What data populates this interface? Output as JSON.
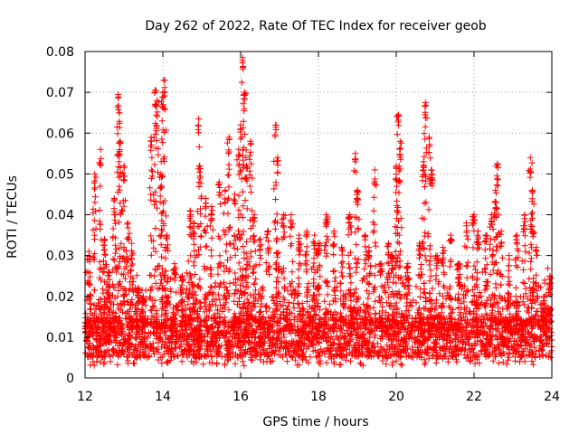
{
  "chart_data": {
    "type": "scatter",
    "title": "Day 262 of 2022, Rate Of TEC Index for receiver geob",
    "xlabel": "GPS time / hours",
    "ylabel": "ROTI / TECUs",
    "xlim": [
      12,
      24
    ],
    "ylim": [
      0,
      0.08
    ],
    "x_ticks": [
      12,
      14,
      16,
      18,
      20,
      22,
      24
    ],
    "x_tick_labels": [
      "12",
      "14",
      "16",
      "18",
      "20",
      "22",
      "24"
    ],
    "y_ticks": [
      0,
      0.01,
      0.02,
      0.03,
      0.04,
      0.05,
      0.06,
      0.07,
      0.08
    ],
    "y_tick_labels": [
      "0",
      "0.01",
      "0.02",
      "0.03",
      "0.04",
      "0.05",
      "0.06",
      "0.07",
      "0.08"
    ],
    "grid": true,
    "marker": "+",
    "color": "#ff0000",
    "series": [
      {
        "name": "ROTI",
        "baseline_range": [
          0.005,
          0.015
        ],
        "peaks": [
          {
            "x": 12.1,
            "y": 0.031
          },
          {
            "x": 12.25,
            "y": 0.05
          },
          {
            "x": 12.4,
            "y": 0.056
          },
          {
            "x": 12.5,
            "y": 0.034
          },
          {
            "x": 12.6,
            "y": 0.026
          },
          {
            "x": 12.75,
            "y": 0.044
          },
          {
            "x": 12.85,
            "y": 0.0695
          },
          {
            "x": 12.88,
            "y": 0.065
          },
          {
            "x": 12.9,
            "y": 0.058
          },
          {
            "x": 13.0,
            "y": 0.052
          },
          {
            "x": 13.1,
            "y": 0.038
          },
          {
            "x": 13.2,
            "y": 0.033
          },
          {
            "x": 13.35,
            "y": 0.022
          },
          {
            "x": 13.5,
            "y": 0.02
          },
          {
            "x": 13.7,
            "y": 0.059
          },
          {
            "x": 13.8,
            "y": 0.0705
          },
          {
            "x": 13.85,
            "y": 0.068
          },
          {
            "x": 13.95,
            "y": 0.05
          },
          {
            "x": 14.0,
            "y": 0.07
          },
          {
            "x": 14.05,
            "y": 0.073
          },
          {
            "x": 14.1,
            "y": 0.035
          },
          {
            "x": 14.3,
            "y": 0.028
          },
          {
            "x": 14.5,
            "y": 0.025
          },
          {
            "x": 14.7,
            "y": 0.041
          },
          {
            "x": 14.8,
            "y": 0.038
          },
          {
            "x": 14.92,
            "y": 0.0635
          },
          {
            "x": 14.95,
            "y": 0.052
          },
          {
            "x": 15.1,
            "y": 0.044
          },
          {
            "x": 15.25,
            "y": 0.042
          },
          {
            "x": 15.45,
            "y": 0.048
          },
          {
            "x": 15.6,
            "y": 0.046
          },
          {
            "x": 15.7,
            "y": 0.059
          },
          {
            "x": 15.85,
            "y": 0.045
          },
          {
            "x": 15.95,
            "y": 0.056
          },
          {
            "x": 16.0,
            "y": 0.062
          },
          {
            "x": 16.05,
            "y": 0.0785
          },
          {
            "x": 16.1,
            "y": 0.07
          },
          {
            "x": 16.15,
            "y": 0.052
          },
          {
            "x": 16.25,
            "y": 0.058
          },
          {
            "x": 16.35,
            "y": 0.04
          },
          {
            "x": 16.5,
            "y": 0.034
          },
          {
            "x": 16.7,
            "y": 0.036
          },
          {
            "x": 16.9,
            "y": 0.062
          },
          {
            "x": 16.95,
            "y": 0.054
          },
          {
            "x": 17.1,
            "y": 0.04
          },
          {
            "x": 17.3,
            "y": 0.04
          },
          {
            "x": 17.5,
            "y": 0.035
          },
          {
            "x": 17.7,
            "y": 0.036
          },
          {
            "x": 17.9,
            "y": 0.035
          },
          {
            "x": 18.0,
            "y": 0.033
          },
          {
            "x": 18.2,
            "y": 0.04
          },
          {
            "x": 18.4,
            "y": 0.036
          },
          {
            "x": 18.6,
            "y": 0.032
          },
          {
            "x": 18.8,
            "y": 0.04
          },
          {
            "x": 18.95,
            "y": 0.055
          },
          {
            "x": 19.0,
            "y": 0.046
          },
          {
            "x": 19.2,
            "y": 0.035
          },
          {
            "x": 19.3,
            "y": 0.032
          },
          {
            "x": 19.45,
            "y": 0.051
          },
          {
            "x": 19.6,
            "y": 0.028
          },
          {
            "x": 19.8,
            "y": 0.033
          },
          {
            "x": 19.9,
            "y": 0.03
          },
          {
            "x": 20.0,
            "y": 0.052
          },
          {
            "x": 20.05,
            "y": 0.0645
          },
          {
            "x": 20.1,
            "y": 0.058
          },
          {
            "x": 20.3,
            "y": 0.028
          },
          {
            "x": 20.6,
            "y": 0.033
          },
          {
            "x": 20.7,
            "y": 0.053
          },
          {
            "x": 20.75,
            "y": 0.0675
          },
          {
            "x": 20.85,
            "y": 0.059
          },
          {
            "x": 20.9,
            "y": 0.051
          },
          {
            "x": 21.05,
            "y": 0.03
          },
          {
            "x": 21.2,
            "y": 0.032
          },
          {
            "x": 21.4,
            "y": 0.035
          },
          {
            "x": 21.6,
            "y": 0.028
          },
          {
            "x": 21.8,
            "y": 0.038
          },
          {
            "x": 22.0,
            "y": 0.04
          },
          {
            "x": 22.1,
            "y": 0.036
          },
          {
            "x": 22.3,
            "y": 0.035
          },
          {
            "x": 22.45,
            "y": 0.04
          },
          {
            "x": 22.55,
            "y": 0.046
          },
          {
            "x": 22.6,
            "y": 0.0525
          },
          {
            "x": 22.7,
            "y": 0.036
          },
          {
            "x": 22.9,
            "y": 0.03
          },
          {
            "x": 23.1,
            "y": 0.035
          },
          {
            "x": 23.3,
            "y": 0.04
          },
          {
            "x": 23.45,
            "y": 0.054
          },
          {
            "x": 23.5,
            "y": 0.046
          },
          {
            "x": 23.6,
            "y": 0.032
          },
          {
            "x": 23.8,
            "y": 0.02
          },
          {
            "x": 23.95,
            "y": 0.025
          }
        ]
      }
    ]
  }
}
